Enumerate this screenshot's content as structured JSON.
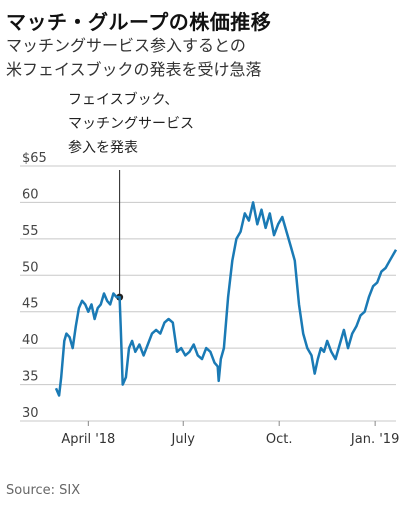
{
  "title": "マッチ・グループの株価推移",
  "subtitle": [
    "マッチングサービス参入するとの",
    "米フェイスブックの発表を受け急落"
  ],
  "source": "Source: SIX",
  "colors": {
    "line": "#1a7ab5",
    "grid": "#c8c8c8",
    "annotation": "#222222"
  },
  "annotation": {
    "lines": [
      "フェイスブック、",
      "マッチングサービス",
      "参入を発表"
    ],
    "date": "2018-05-01",
    "value": 47
  },
  "chart_data": {
    "type": "line",
    "title": "マッチ・グループの株価推移",
    "xlabel": "",
    "ylabel": "",
    "ylim": [
      30,
      65
    ],
    "yticks": [
      65,
      60,
      55,
      50,
      45,
      40,
      35,
      30
    ],
    "ytick_labels": [
      "$65",
      "60",
      "55",
      "50",
      "45",
      "40",
      "35",
      "30"
    ],
    "xticks": [
      {
        "date": "2018-04-01",
        "label": "April '18"
      },
      {
        "date": "2018-07-01",
        "label": "July"
      },
      {
        "date": "2018-10-01",
        "label": "Oct."
      },
      {
        "date": "2019-01-01",
        "label": "Jan. '19"
      }
    ],
    "xlim": [
      "2018-03-01",
      "2019-01-21"
    ],
    "grid": true,
    "series": [
      {
        "x": [
          "2018-03-01",
          "2018-03-04",
          "2018-03-06",
          "2018-03-09",
          "2018-03-11",
          "2018-03-14",
          "2018-03-17",
          "2018-03-20",
          "2018-03-23",
          "2018-03-26",
          "2018-03-29",
          "2018-04-01",
          "2018-04-04",
          "2018-04-07",
          "2018-04-10",
          "2018-04-13",
          "2018-04-16",
          "2018-04-19",
          "2018-04-22",
          "2018-04-25",
          "2018-04-28",
          "2018-05-01",
          "2018-05-02",
          "2018-05-04",
          "2018-05-07",
          "2018-05-10",
          "2018-05-13",
          "2018-05-16",
          "2018-05-20",
          "2018-05-24",
          "2018-05-28",
          "2018-06-01",
          "2018-06-05",
          "2018-06-09",
          "2018-06-13",
          "2018-06-17",
          "2018-06-21",
          "2018-06-25",
          "2018-06-29",
          "2018-07-03",
          "2018-07-07",
          "2018-07-11",
          "2018-07-15",
          "2018-07-19",
          "2018-07-23",
          "2018-07-27",
          "2018-07-31",
          "2018-08-03",
          "2018-08-04",
          "2018-08-06",
          "2018-08-09",
          "2018-08-13",
          "2018-08-17",
          "2018-08-21",
          "2018-08-25",
          "2018-08-29",
          "2018-09-02",
          "2018-09-06",
          "2018-09-10",
          "2018-09-14",
          "2018-09-18",
          "2018-09-22",
          "2018-09-26",
          "2018-09-30",
          "2018-10-04",
          "2018-10-08",
          "2018-10-12",
          "2018-10-16",
          "2018-10-20",
          "2018-10-24",
          "2018-10-28",
          "2018-11-01",
          "2018-11-04",
          "2018-11-07",
          "2018-11-10",
          "2018-11-13",
          "2018-11-16",
          "2018-11-20",
          "2018-11-24",
          "2018-11-28",
          "2018-12-02",
          "2018-12-06",
          "2018-12-10",
          "2018-12-14",
          "2018-12-18",
          "2018-12-22",
          "2018-12-26",
          "2018-12-30",
          "2019-01-03",
          "2019-01-07",
          "2019-01-11",
          "2019-01-15",
          "2019-01-19",
          "2019-01-21"
        ],
        "y": [
          34.5,
          33.5,
          36,
          41,
          42,
          41.5,
          40,
          43,
          45.5,
          46.5,
          46,
          45,
          46,
          44,
          45.5,
          46,
          47.5,
          46.5,
          46,
          47.5,
          47,
          47,
          43,
          35,
          36,
          40,
          41,
          39.5,
          40.5,
          39,
          40.5,
          42,
          42.5,
          42,
          43.5,
          44,
          43.5,
          39.5,
          40,
          39,
          39.5,
          40.5,
          39,
          38.5,
          40,
          39.5,
          38,
          37.5,
          35.5,
          38.5,
          40,
          47,
          52,
          55,
          56,
          58.5,
          57.5,
          60,
          57,
          59,
          56.5,
          58.5,
          55.5,
          57,
          58,
          56,
          54,
          52,
          46,
          42,
          40,
          39,
          36.5,
          38.5,
          40,
          39.5,
          41,
          39.5,
          38.5,
          40.5,
          42.5,
          40,
          42,
          43,
          44.5,
          45,
          47,
          48.5,
          49,
          50.5,
          51,
          52,
          53,
          53.5
        ]
      }
    ]
  }
}
